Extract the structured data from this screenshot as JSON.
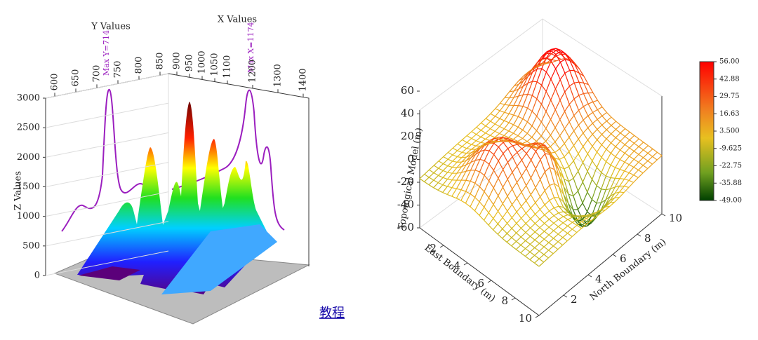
{
  "left_chart": {
    "y_axis_title": "Y Values",
    "x_axis_title": "X Values",
    "z_axis_title": "Z Values",
    "y_ticks": [
      600,
      650,
      700,
      750,
      800,
      850
    ],
    "x_ticks": [
      900,
      950,
      1000,
      1050,
      1100,
      1200,
      1300,
      1400
    ],
    "z_ticks": [
      0,
      500,
      1000,
      1500,
      2000,
      2500,
      3000
    ],
    "annotations": [
      "Max  Y=714",
      "Max  X=1174"
    ]
  },
  "right_chart": {
    "z_axis_title": "Topological Model (m)",
    "east_axis_title": "East Boundary (m)",
    "north_axis_title": "North Boundary (m)",
    "z_ticks": [
      -60,
      -40,
      -20,
      0,
      20,
      40,
      60
    ],
    "east_ticks": [
      2,
      4,
      6,
      8,
      10
    ],
    "north_ticks": [
      2,
      4,
      6,
      8,
      10
    ],
    "colorbar_labels": [
      "56.00",
      "42.88",
      "29.75",
      "16.63",
      "3.500",
      "-9.625",
      "-22.75",
      "-35.88",
      "-49.00"
    ]
  },
  "link": "教程"
}
